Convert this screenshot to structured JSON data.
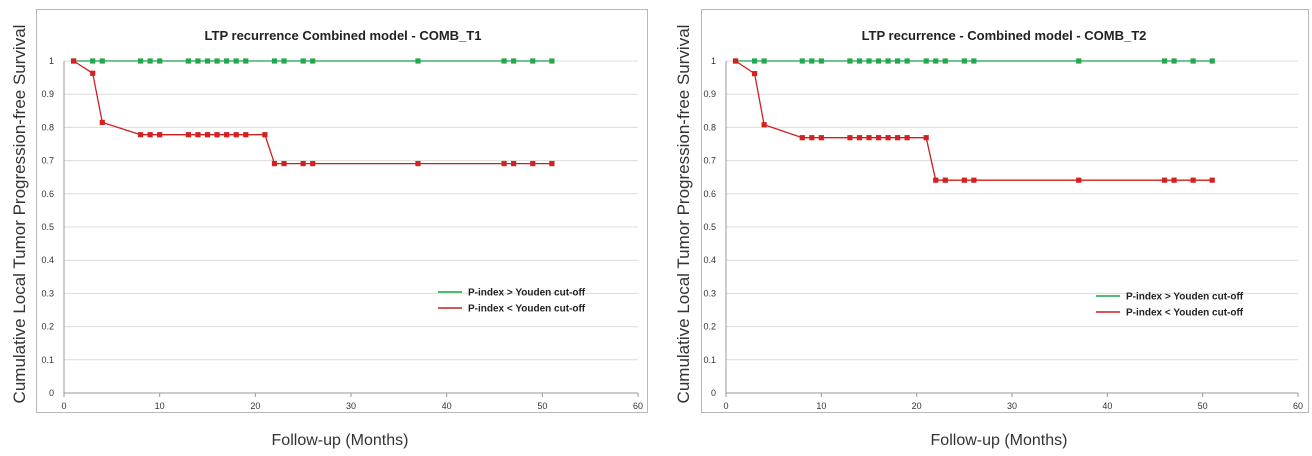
{
  "chart_data": [
    {
      "type": "line",
      "step": true,
      "title": "LTP recurrence Combined model - COMB_T1",
      "xlabel": "Follow-up (Months)",
      "ylabel": "Cumulative Local Tumor Progression-free Survival",
      "xlim": [
        0,
        60
      ],
      "ylim": [
        0,
        1
      ],
      "xticks": [
        0,
        10,
        20,
        30,
        40,
        50,
        60
      ],
      "yticks": [
        0,
        0.1,
        0.2,
        0.3,
        0.4,
        0.5,
        0.6,
        0.7,
        0.8,
        0.9,
        1
      ],
      "grid": true,
      "legend_position": "right",
      "series": [
        {
          "name": "P-index > Youden cut-off",
          "color": "#1aa34a",
          "marker_color": "#22a84a",
          "line": [
            [
              1,
              1
            ],
            [
              51,
              1
            ]
          ],
          "markers": [
            [
              1,
              1
            ],
            [
              3,
              1
            ],
            [
              4,
              1
            ],
            [
              8,
              1
            ],
            [
              9,
              1
            ],
            [
              10,
              1
            ],
            [
              13,
              1
            ],
            [
              14,
              1
            ],
            [
              15,
              1
            ],
            [
              16,
              1
            ],
            [
              17,
              1
            ],
            [
              18,
              1
            ],
            [
              19,
              1
            ],
            [
              22,
              1
            ],
            [
              23,
              1
            ],
            [
              25,
              1
            ],
            [
              26,
              1
            ],
            [
              37,
              1
            ],
            [
              46,
              1
            ],
            [
              47,
              1
            ],
            [
              49,
              1
            ],
            [
              51,
              1
            ]
          ]
        },
        {
          "name": "P-index < Youden cut-off",
          "color": "#cc1f1f",
          "marker_color": "#d62020",
          "line": [
            [
              1,
              1
            ],
            [
              3,
              0.963
            ],
            [
              4,
              0.815
            ],
            [
              8,
              0.778
            ],
            [
              21,
              0.778
            ],
            [
              22,
              0.691
            ],
            [
              51,
              0.691
            ]
          ],
          "markers": [
            [
              1,
              1
            ],
            [
              3,
              0.963
            ],
            [
              4,
              0.815
            ],
            [
              8,
              0.778
            ],
            [
              9,
              0.778
            ],
            [
              10,
              0.778
            ],
            [
              13,
              0.778
            ],
            [
              14,
              0.778
            ],
            [
              15,
              0.778
            ],
            [
              16,
              0.778
            ],
            [
              17,
              0.778
            ],
            [
              18,
              0.778
            ],
            [
              19,
              0.778
            ],
            [
              21,
              0.778
            ],
            [
              22,
              0.691
            ],
            [
              23,
              0.691
            ],
            [
              25,
              0.691
            ],
            [
              26,
              0.691
            ],
            [
              37,
              0.691
            ],
            [
              46,
              0.691
            ],
            [
              47,
              0.691
            ],
            [
              49,
              0.691
            ],
            [
              51,
              0.691
            ]
          ]
        }
      ]
    },
    {
      "type": "line",
      "step": true,
      "title": "LTP recurrence - Combined model - COMB_T2",
      "xlabel": "Follow-up (Months)",
      "ylabel": "Cumulative Local Tumor Progression-free Survival",
      "xlim": [
        0,
        60
      ],
      "ylim": [
        0,
        1
      ],
      "xticks": [
        0,
        10,
        20,
        30,
        40,
        50,
        60
      ],
      "yticks": [
        0,
        0.1,
        0.2,
        0.3,
        0.4,
        0.5,
        0.6,
        0.7,
        0.8,
        0.9,
        1
      ],
      "grid": true,
      "legend_position": "right",
      "series": [
        {
          "name": "P-index > Youden cut-off",
          "color": "#1aa34a",
          "marker_color": "#22a84a",
          "line": [
            [
              1,
              1
            ],
            [
              51,
              1
            ]
          ],
          "markers": [
            [
              1,
              1
            ],
            [
              3,
              1
            ],
            [
              4,
              1
            ],
            [
              8,
              1
            ],
            [
              9,
              1
            ],
            [
              10,
              1
            ],
            [
              13,
              1
            ],
            [
              14,
              1
            ],
            [
              15,
              1
            ],
            [
              16,
              1
            ],
            [
              17,
              1
            ],
            [
              18,
              1
            ],
            [
              19,
              1
            ],
            [
              21,
              1
            ],
            [
              22,
              1
            ],
            [
              23,
              1
            ],
            [
              25,
              1
            ],
            [
              26,
              1
            ],
            [
              37,
              1
            ],
            [
              46,
              1
            ],
            [
              47,
              1
            ],
            [
              49,
              1
            ],
            [
              51,
              1
            ]
          ]
        },
        {
          "name": "P-index < Youden cut-off",
          "color": "#cc1f1f",
          "marker_color": "#d62020",
          "line": [
            [
              1,
              1
            ],
            [
              3,
              0.962
            ],
            [
              4,
              0.808
            ],
            [
              8,
              0.769
            ],
            [
              21,
              0.769
            ],
            [
              22,
              0.641
            ],
            [
              51,
              0.641
            ]
          ],
          "markers": [
            [
              1,
              1
            ],
            [
              3,
              0.962
            ],
            [
              4,
              0.808
            ],
            [
              8,
              0.769
            ],
            [
              9,
              0.769
            ],
            [
              10,
              0.769
            ],
            [
              13,
              0.769
            ],
            [
              14,
              0.769
            ],
            [
              15,
              0.769
            ],
            [
              16,
              0.769
            ],
            [
              17,
              0.769
            ],
            [
              18,
              0.769
            ],
            [
              19,
              0.769
            ],
            [
              21,
              0.769
            ],
            [
              22,
              0.641
            ],
            [
              23,
              0.641
            ],
            [
              25,
              0.641
            ],
            [
              26,
              0.641
            ],
            [
              37,
              0.641
            ],
            [
              46,
              0.641
            ],
            [
              47,
              0.641
            ],
            [
              49,
              0.641
            ],
            [
              51,
              0.641
            ]
          ]
        }
      ]
    }
  ]
}
